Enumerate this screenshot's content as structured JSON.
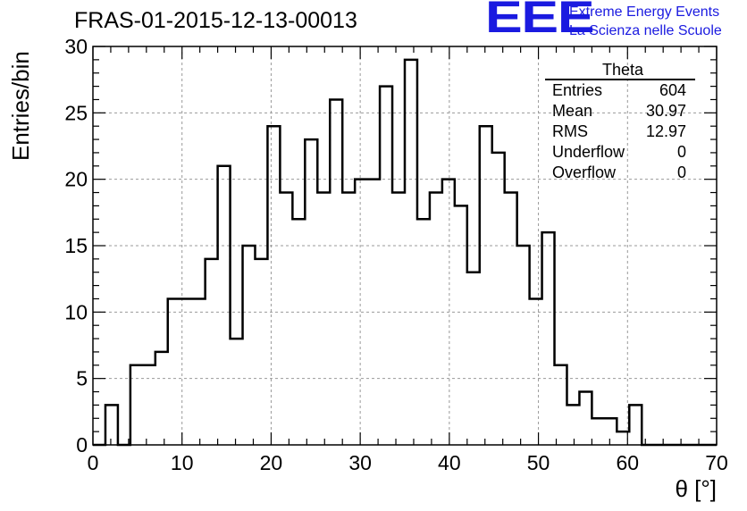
{
  "header": {
    "title": "FRAS-01-2015-12-13-00013",
    "logo_text": "EEE",
    "logo_line1": "Extreme Energy Events",
    "logo_line2": "La Scienza nelle Scuole",
    "logo_color": "#1a1ae0"
  },
  "stats_box": {
    "title": "Theta",
    "rows": [
      {
        "label": "Entries",
        "value": "604"
      },
      {
        "label": "Mean",
        "value": "30.97"
      },
      {
        "label": "RMS",
        "value": "12.97"
      },
      {
        "label": "Underflow",
        "value": "0"
      },
      {
        "label": "Overflow",
        "value": "0"
      }
    ]
  },
  "chart_data": {
    "type": "bar",
    "style": "step-histogram",
    "title": "FRAS-01-2015-12-13-00013",
    "xlabel": "θ [°]",
    "ylabel": "Entries/bin",
    "xlim": [
      0,
      70
    ],
    "ylim": [
      0,
      30
    ],
    "bin_width": 1.4,
    "x_ticks": [
      0,
      10,
      20,
      30,
      40,
      50,
      60,
      70
    ],
    "y_ticks": [
      0,
      5,
      10,
      15,
      20,
      25,
      30
    ],
    "grid": true,
    "bin_low_edges": [
      0,
      1.4,
      2.8,
      4.2,
      5.6,
      7,
      8.4,
      9.8,
      11.2,
      12.6,
      14,
      15.4,
      16.8,
      18.2,
      19.6,
      21,
      22.4,
      23.8,
      25.2,
      26.6,
      28,
      29.4,
      30.8,
      32.2,
      33.6,
      35,
      36.4,
      37.8,
      39.2,
      40.6,
      42,
      43.4,
      44.8,
      46.2,
      47.6,
      49,
      50.4,
      51.8,
      53.2,
      54.6,
      56,
      57.4,
      58.8,
      60.2,
      61.6,
      63,
      64.4,
      65.8,
      67.2,
      68.6
    ],
    "values": [
      0,
      3,
      0,
      6,
      6,
      7,
      11,
      11,
      11,
      14,
      21,
      8,
      15,
      14,
      24,
      19,
      17,
      23,
      19,
      26,
      19,
      20,
      20,
      27,
      19,
      29,
      17,
      19,
      20,
      18,
      13,
      24,
      22,
      19,
      15,
      11,
      16,
      6,
      3,
      4,
      2,
      2,
      1,
      3,
      0,
      0,
      0,
      0,
      0,
      0
    ]
  }
}
